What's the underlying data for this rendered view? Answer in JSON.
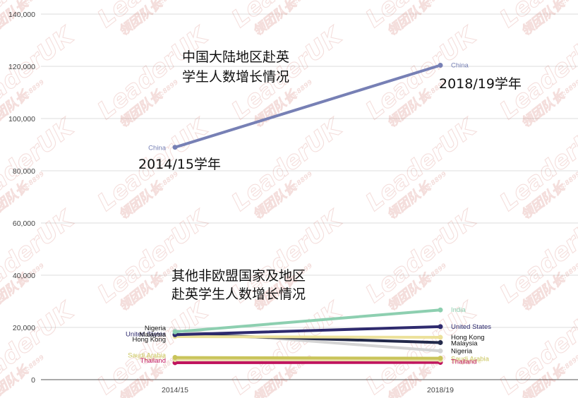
{
  "chart_data": {
    "type": "line",
    "x": [
      "2014/15",
      "2018/19"
    ],
    "ylim": [
      0,
      140000
    ],
    "yticks": [
      0,
      20000,
      40000,
      60000,
      80000,
      100000,
      120000,
      140000
    ],
    "ytick_labels": [
      "0",
      "20,000",
      "40,000",
      "60,000",
      "80,000",
      "100,000",
      "120,000",
      "140,000"
    ],
    "grid": true,
    "series": [
      {
        "name": "China",
        "values": [
          89000,
          120400
        ],
        "color": "#7780b5"
      },
      {
        "name": "India",
        "values": [
          18300,
          26700
        ],
        "color": "#8dcfb0"
      },
      {
        "name": "United States",
        "values": [
          17200,
          20300
        ],
        "color": "#2e2a6e"
      },
      {
        "name": "Hong Kong",
        "values": [
          16500,
          16200
        ],
        "color": "#ece19a"
      },
      {
        "name": "Malaysia",
        "values": [
          17300,
          14200
        ],
        "color": "#232a4a"
      },
      {
        "name": "Nigeria",
        "values": [
          18700,
          11000
        ],
        "color": "#d4d4d4"
      },
      {
        "name": "Saudi Arabia",
        "values": [
          8500,
          8200
        ],
        "color": "#c9c45a"
      },
      {
        "name": "Singapore",
        "values": [
          7700,
          7500
        ],
        "color": "#e5dca4"
      },
      {
        "name": "Thailand",
        "values": [
          6500,
          6600
        ],
        "color": "#c0145e"
      }
    ],
    "annotations": {
      "china_title": [
        "中国大陆地区赴英",
        "学生人数增长情况"
      ],
      "china_start": "2014/15学年",
      "china_end": "2018/19学年",
      "others_title": [
        "其他非欧盟国家及地区",
        "赴英学生人数增长情况"
      ]
    }
  },
  "watermark": {
    "brand": "LeaderUK",
    "sub": "领团队长",
    "code": "dis:8899"
  }
}
